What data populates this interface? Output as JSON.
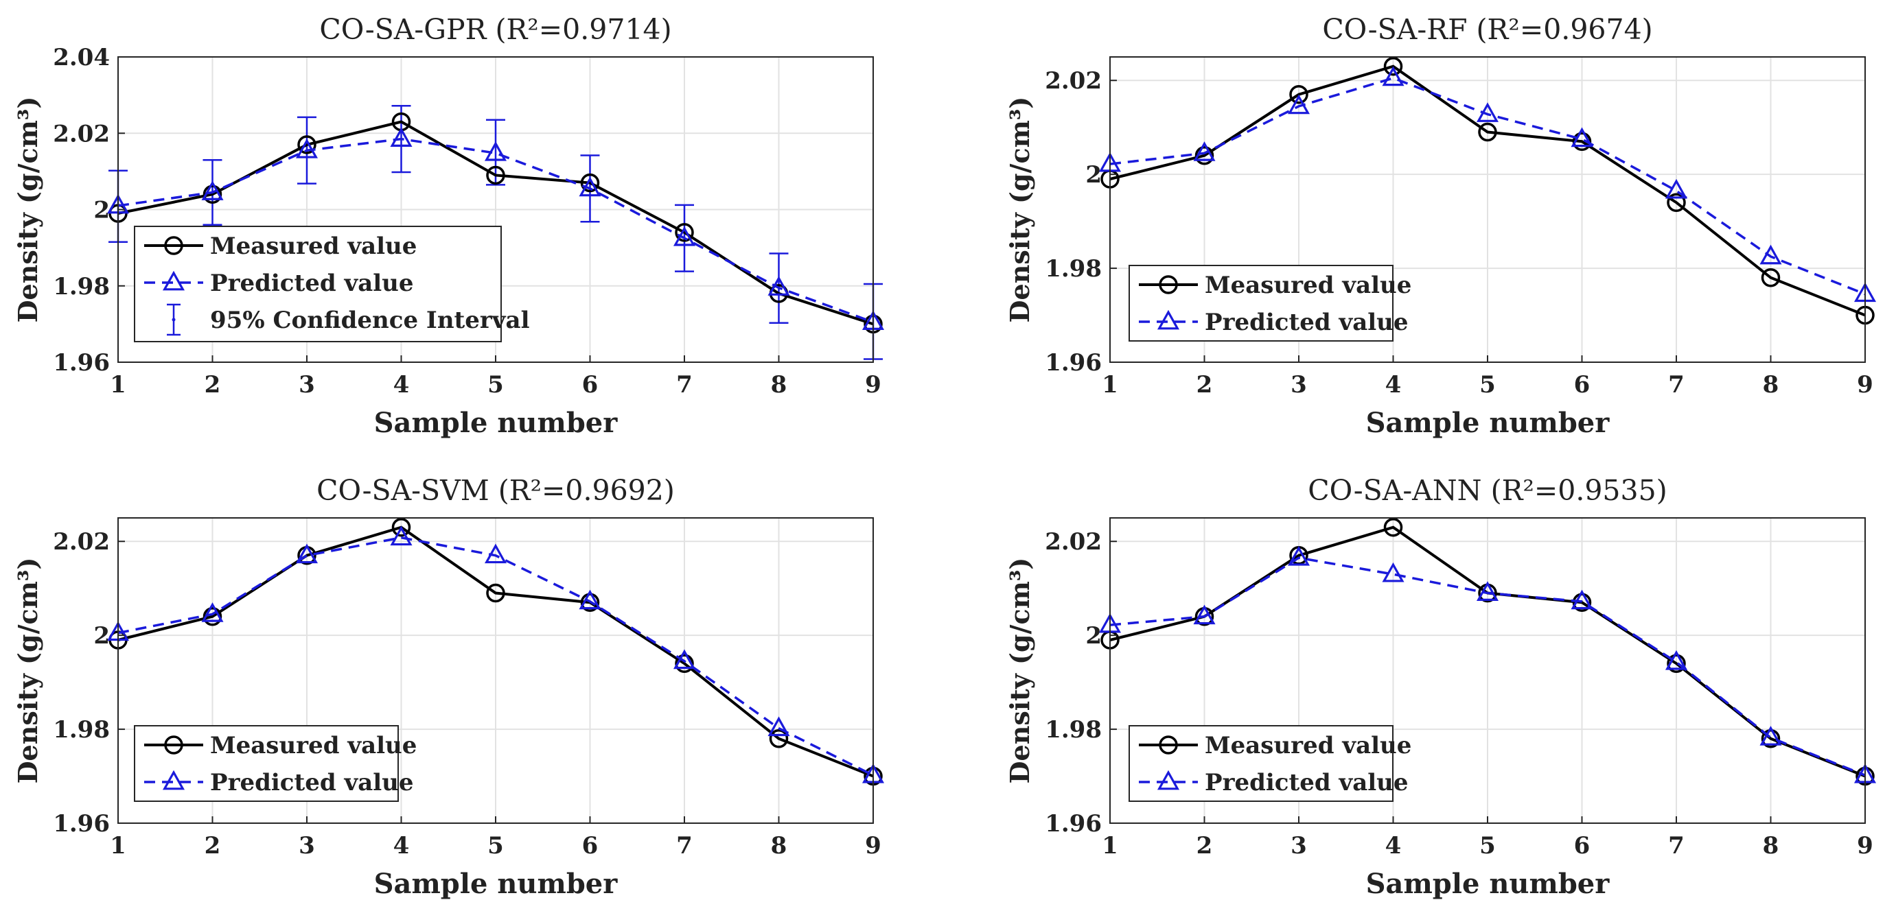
{
  "chart_data": [
    {
      "type": "line",
      "title": "CO-SA-GPR (R²=0.9714)",
      "xlabel": "Sample number",
      "ylabel": "Density (g/cm³)",
      "x": [
        1,
        2,
        3,
        4,
        5,
        6,
        7,
        8,
        9
      ],
      "xlim": [
        1,
        9
      ],
      "ylim": [
        1.96,
        2.04
      ],
      "yticks": [
        1.96,
        1.98,
        2,
        2.02,
        2.04
      ],
      "ytick_labels": [
        "1.96",
        "1.98",
        "2",
        "2.02",
        "2.04"
      ],
      "grid": true,
      "legend_position": "lower-left",
      "series": [
        {
          "name": "Measured value",
          "values": [
            1.999,
            2.004,
            2.017,
            2.023,
            2.009,
            2.007,
            1.994,
            1.978,
            1.97
          ],
          "color": "#000000",
          "style": "solid",
          "marker": "circle"
        },
        {
          "name": "Predicted value",
          "values": [
            2.001,
            2.0045,
            2.0155,
            2.0185,
            2.0148,
            2.0055,
            1.9925,
            1.9795,
            1.9705
          ],
          "color": "#1a1adb",
          "style": "dashed",
          "marker": "triangle"
        }
      ],
      "confidence_interval": {
        "name": "95% Confidence Interval",
        "lower": [
          1.9915,
          1.996,
          2.0068,
          2.0098,
          2.0065,
          1.9968,
          1.9838,
          1.9703,
          1.9608
        ],
        "upper": [
          2.0102,
          2.013,
          2.0242,
          2.0272,
          2.0235,
          2.0142,
          2.0012,
          1.9885,
          1.9805
        ]
      }
    },
    {
      "type": "line",
      "title": "CO-SA-RF (R²=0.9674)",
      "xlabel": "Sample number",
      "ylabel": "Density (g/cm³)",
      "x": [
        1,
        2,
        3,
        4,
        5,
        6,
        7,
        8,
        9
      ],
      "xlim": [
        1,
        9
      ],
      "ylim": [
        1.96,
        2.025
      ],
      "yticks": [
        1.96,
        1.98,
        2,
        2.02
      ],
      "ytick_labels": [
        "1.96",
        "1.98",
        "2",
        "2.02"
      ],
      "grid": true,
      "legend_position": "lower-left",
      "series": [
        {
          "name": "Measured value",
          "values": [
            1.999,
            2.004,
            2.017,
            2.023,
            2.009,
            2.007,
            1.994,
            1.978,
            1.97
          ],
          "color": "#000000",
          "style": "solid",
          "marker": "circle"
        },
        {
          "name": "Predicted value",
          "values": [
            2.0022,
            2.0045,
            2.0145,
            2.0205,
            2.0128,
            2.0075,
            1.9965,
            1.9825,
            1.9745
          ],
          "color": "#1a1adb",
          "style": "dashed",
          "marker": "triangle"
        }
      ]
    },
    {
      "type": "line",
      "title": "CO-SA-SVM (R²=0.9692)",
      "xlabel": "Sample number",
      "ylabel": "Density (g/cm³)",
      "x": [
        1,
        2,
        3,
        4,
        5,
        6,
        7,
        8,
        9
      ],
      "xlim": [
        1,
        9
      ],
      "ylim": [
        1.96,
        2.025
      ],
      "yticks": [
        1.96,
        1.98,
        2,
        2.02
      ],
      "ytick_labels": [
        "1.96",
        "1.98",
        "2",
        "2.02"
      ],
      "grid": true,
      "legend_position": "lower-left",
      "series": [
        {
          "name": "Measured value",
          "values": [
            1.999,
            2.004,
            2.017,
            2.023,
            2.009,
            2.007,
            1.994,
            1.978,
            1.97
          ],
          "color": "#000000",
          "style": "solid",
          "marker": "circle"
        },
        {
          "name": "Predicted value",
          "values": [
            2.0005,
            2.0045,
            2.017,
            2.0208,
            2.017,
            2.0072,
            1.9945,
            1.9802,
            1.9702
          ],
          "color": "#1a1adb",
          "style": "dashed",
          "marker": "triangle"
        }
      ]
    },
    {
      "type": "line",
      "title": "CO-SA-ANN (R²=0.9535)",
      "xlabel": "Sample number",
      "ylabel": "Density (g/cm³)",
      "x": [
        1,
        2,
        3,
        4,
        5,
        6,
        7,
        8,
        9
      ],
      "xlim": [
        1,
        9
      ],
      "ylim": [
        1.96,
        2.025
      ],
      "yticks": [
        1.96,
        1.98,
        2,
        2.02
      ],
      "ytick_labels": [
        "1.96",
        "1.98",
        "2",
        "2.02"
      ],
      "grid": true,
      "legend_position": "lower-left",
      "series": [
        {
          "name": "Measured value",
          "values": [
            1.999,
            2.004,
            2.017,
            2.023,
            2.009,
            2.007,
            1.994,
            1.978,
            1.97
          ],
          "color": "#000000",
          "style": "solid",
          "marker": "circle"
        },
        {
          "name": "Predicted value",
          "values": [
            2.0022,
            2.004,
            2.0165,
            2.013,
            2.009,
            2.0072,
            1.9943,
            1.9782,
            1.9702
          ],
          "color": "#1a1adb",
          "style": "dashed",
          "marker": "triangle"
        }
      ]
    }
  ]
}
